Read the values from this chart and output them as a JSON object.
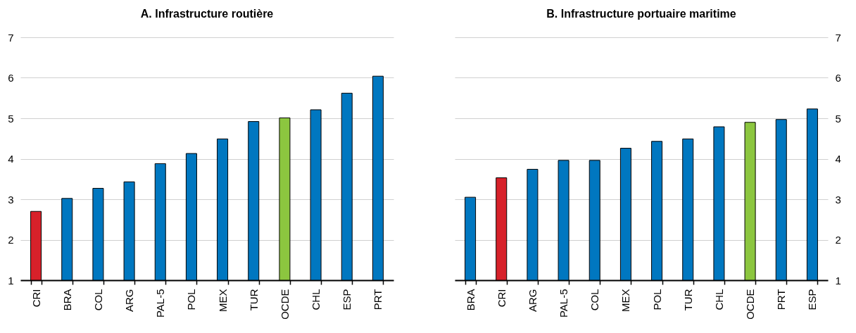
{
  "chart_data": [
    {
      "type": "bar",
      "title": "A. Infrastructure routière",
      "categories": [
        "CRI",
        "BRA",
        "COL",
        "ARG",
        "PAL-5",
        "POL",
        "MEX",
        "TUR",
        "OCDE",
        "CHL",
        "ESP",
        "PRT"
      ],
      "values": [
        2.7,
        3.02,
        3.27,
        3.43,
        3.88,
        4.13,
        4.49,
        4.92,
        5.01,
        5.21,
        5.62,
        6.04
      ],
      "colors": [
        "#d7212a",
        "#0077c0",
        "#0077c0",
        "#0077c0",
        "#0077c0",
        "#0077c0",
        "#0077c0",
        "#0077c0",
        "#8cc63f",
        "#0077c0",
        "#0077c0",
        "#0077c0"
      ],
      "ylim": [
        1,
        7
      ],
      "yticks": [
        1,
        2,
        3,
        4,
        5,
        6,
        7
      ],
      "grid": "y"
    },
    {
      "type": "bar",
      "title": "B. Infrastructure portuaire maritime",
      "categories": [
        "BRA",
        "CRI",
        "ARG",
        "PAL-5",
        "COL",
        "MEX",
        "POL",
        "TUR",
        "CHL",
        "OCDE",
        "PRT",
        "ESP"
      ],
      "values": [
        3.05,
        3.53,
        3.74,
        3.96,
        3.96,
        4.26,
        4.43,
        4.49,
        4.79,
        4.9,
        4.97,
        5.23
      ],
      "colors": [
        "#0077c0",
        "#d7212a",
        "#0077c0",
        "#0077c0",
        "#0077c0",
        "#0077c0",
        "#0077c0",
        "#0077c0",
        "#0077c0",
        "#8cc63f",
        "#0077c0",
        "#0077c0"
      ],
      "ylim": [
        1,
        7
      ],
      "yticks": [
        1,
        2,
        3,
        4,
        5,
        6,
        7
      ],
      "grid": "y"
    }
  ]
}
